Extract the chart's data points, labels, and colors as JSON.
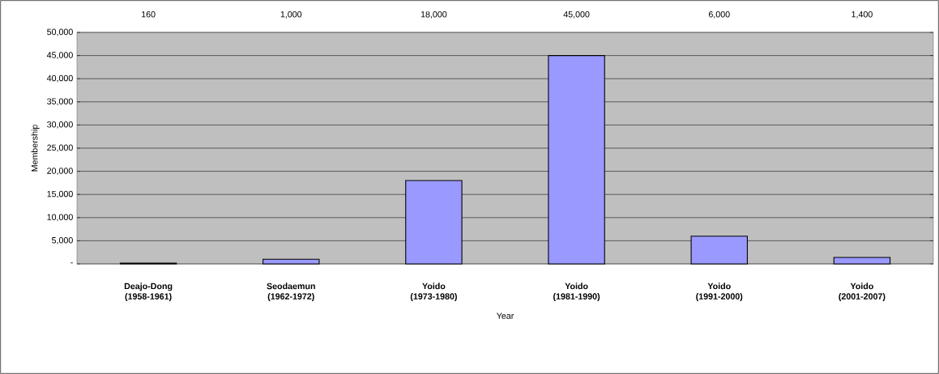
{
  "chart_data": {
    "type": "bar",
    "categories": [
      "Deajo-Dong (1958-1961)",
      "Seodaemun (1962-1972)",
      "Yoido (1973-1980)",
      "Yoido (1981-1990)",
      "Yoido (1991-2000)",
      "Yoido (2001-2007)"
    ],
    "values": [
      160,
      1000,
      18000,
      45000,
      6000,
      1400
    ],
    "value_labels": [
      "160",
      "1,000",
      "18,000",
      "45,000",
      "6,000",
      "1,400"
    ],
    "color": "#9999ff",
    "xlabel": "Year",
    "ylabel": "Membership",
    "ylim": [
      0,
      50000
    ],
    "yticks": [
      {
        "value": 0,
        "label": "-"
      },
      {
        "value": 5000,
        "label": "5,000"
      },
      {
        "value": 10000,
        "label": "10,000"
      },
      {
        "value": 15000,
        "label": "15,000"
      },
      {
        "value": 20000,
        "label": "20,000"
      },
      {
        "value": 25000,
        "label": "25,000"
      },
      {
        "value": 30000,
        "label": "30,000"
      },
      {
        "value": 35000,
        "label": "35,000"
      },
      {
        "value": 40000,
        "label": "40,000"
      },
      {
        "value": 45000,
        "label": "45,000"
      },
      {
        "value": 50000,
        "label": "50,000"
      }
    ],
    "grid": "y"
  }
}
